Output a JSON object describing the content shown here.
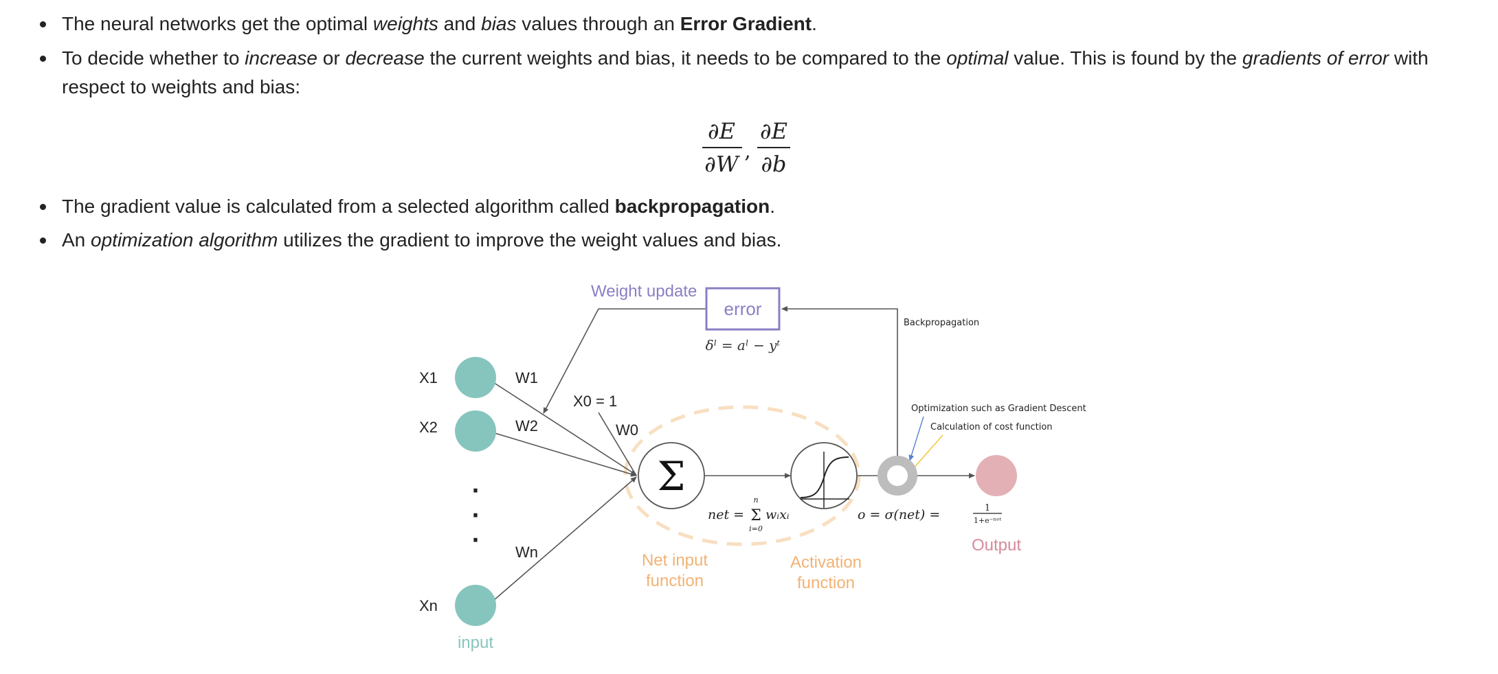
{
  "bullets": [
    {
      "parts": [
        {
          "text": "The neural networks get the optimal ",
          "style": "normal"
        },
        {
          "text": "weights",
          "style": "italic"
        },
        {
          "text": " and ",
          "style": "normal"
        },
        {
          "text": "bias",
          "style": "italic"
        },
        {
          "text": " values through an ",
          "style": "normal"
        },
        {
          "text": "Error Gradient",
          "style": "bold"
        },
        {
          "text": ".",
          "style": "normal"
        }
      ]
    },
    {
      "parts": [
        {
          "text": "To decide whether to ",
          "style": "normal"
        },
        {
          "text": "increase",
          "style": "italic"
        },
        {
          "text": " or ",
          "style": "normal"
        },
        {
          "text": "decrease",
          "style": "italic"
        },
        {
          "text": " the current weights and bias, it needs to be compared to the ",
          "style": "normal"
        },
        {
          "text": "optimal",
          "style": "italic"
        },
        {
          "text": " value. This is found by the ",
          "style": "normal"
        },
        {
          "text": "gradients of error",
          "style": "italic"
        },
        {
          "text": " with respect to weights and bias:",
          "style": "normal"
        }
      ]
    },
    {
      "parts": [
        {
          "text": "The gradient value is calculated from a selected algorithm called ",
          "style": "normal"
        },
        {
          "text": "backpropagation",
          "style": "bold"
        },
        {
          "text": ".",
          "style": "normal"
        }
      ]
    },
    {
      "parts": [
        {
          "text": "An ",
          "style": "normal"
        },
        {
          "text": "optimization algorithm",
          "style": "italic"
        },
        {
          "text": " utilizes the gradient to improve the weight values and bias.",
          "style": "normal"
        }
      ]
    }
  ],
  "formula": {
    "numerator_1": "∂E",
    "denominator_1": "∂W",
    "separator": ",",
    "numerator_2": "∂E",
    "denominator_2": "∂b"
  },
  "diagram": {
    "inputs": [
      "X1",
      "X2",
      "Xn"
    ],
    "weights": [
      "W1",
      "W2",
      "Wn"
    ],
    "bias_label": "X0 = 1",
    "bias_weight": "W0",
    "input_caption": "input",
    "ellipsis_dot": "·",
    "weight_update": "Weight update",
    "error_label": "error",
    "error_formula": "δˡ = aˡ − yᵗ",
    "backprop_label": "Backpropagation",
    "optimization_label": "Optimization such as Gradient Descent",
    "cost_label": "Calculation of cost function",
    "sum_symbol": "Σ",
    "net_formula_left": "net =",
    "net_sum_top": "n",
    "net_sum_symbol": "Σ",
    "net_sum_bottom": "i=0",
    "net_sum_term": "wᵢxᵢ",
    "output_formula": "o = σ(net) =",
    "sigmoid_num": "1",
    "sigmoid_den": "1+e⁻ⁿᵉᵗ",
    "net_input_line1": "Net input",
    "net_input_line2": "function",
    "activation_line1": "Activation",
    "activation_line2": "function",
    "output_label": "Output",
    "colors": {
      "input_node": "#86c5bd",
      "output_node": "#e3b0b6",
      "purple": "#8a7fc4",
      "orange": "#f2b274",
      "dashed_ellipse": "#f8dfc1",
      "line": "#555555",
      "gray_ring": "#bdbdbd",
      "blue_pointer": "#5b7fd0",
      "yellow_pointer": "#f2c230"
    }
  }
}
